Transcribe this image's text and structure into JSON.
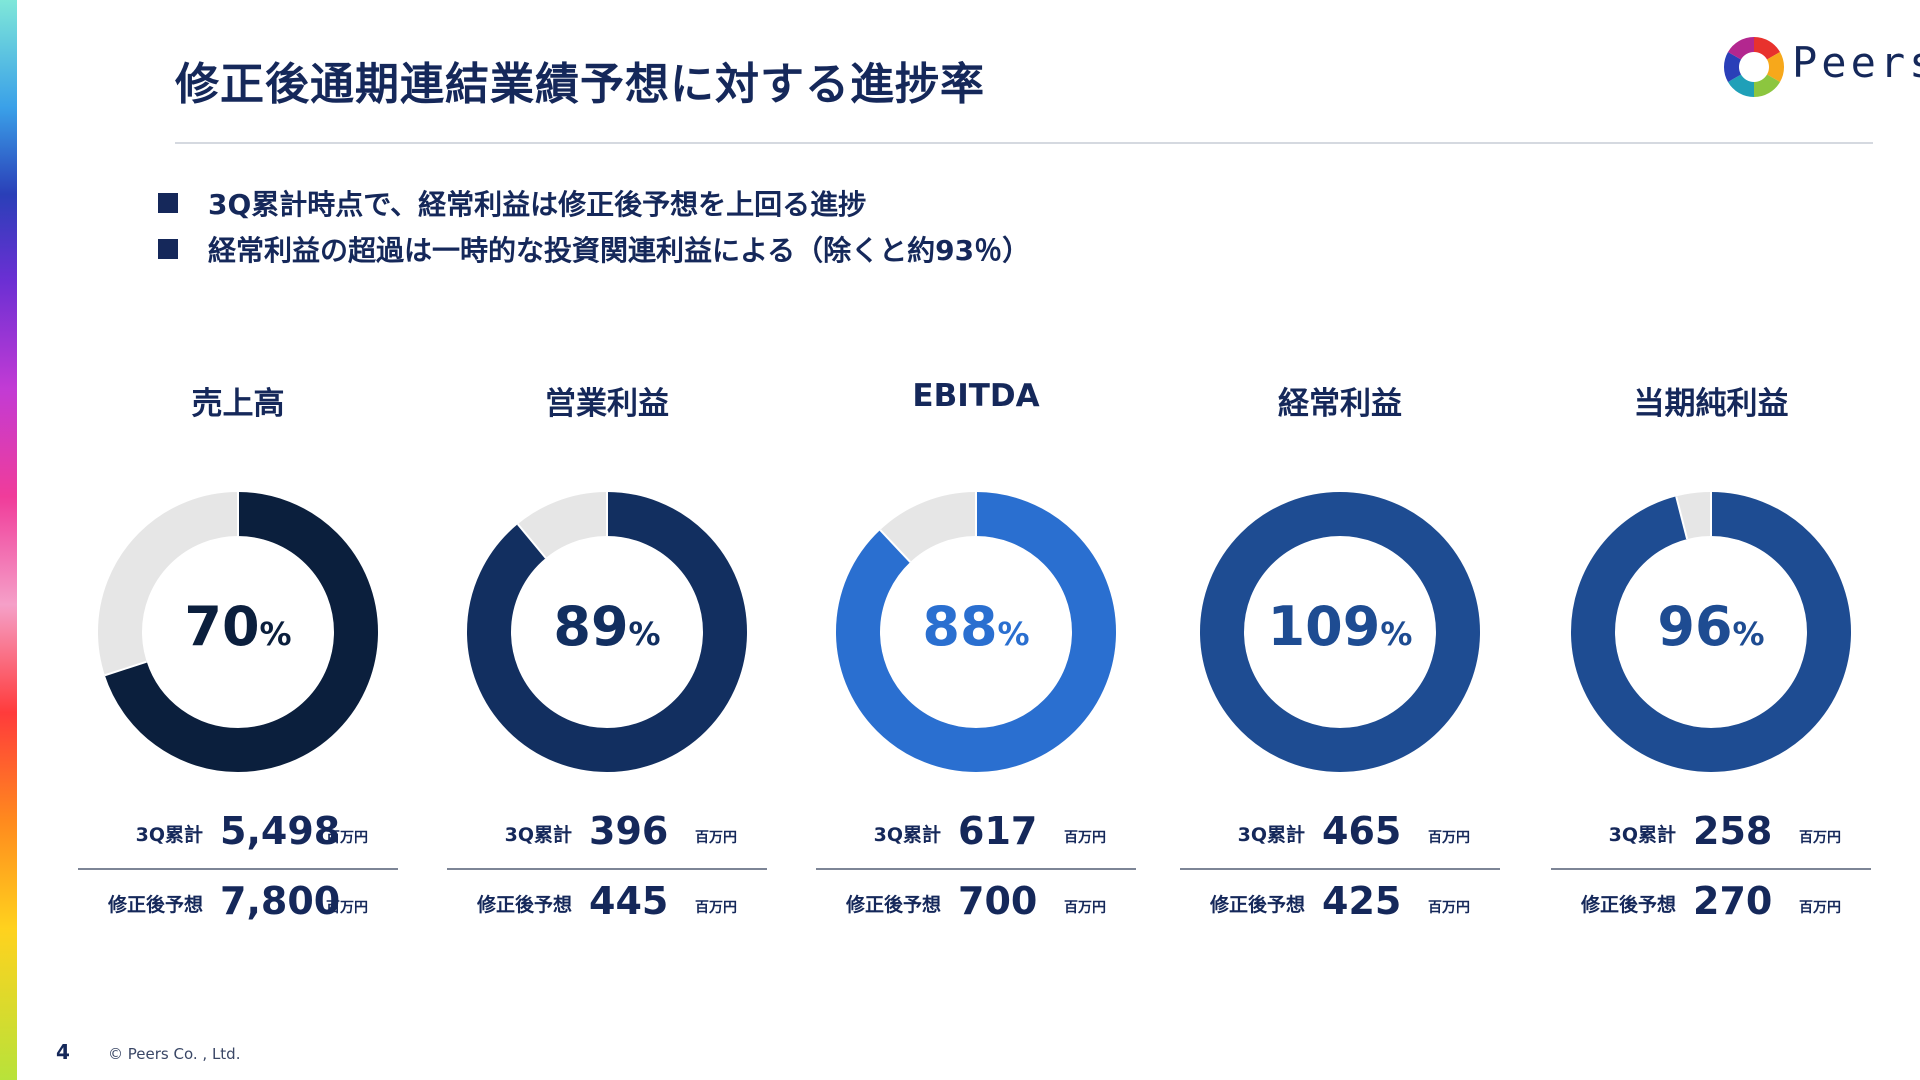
{
  "page": {
    "title": "修正後通期連結業績予想に対する進捗率",
    "logo_text": "Peers",
    "bullets": [
      "3Q累計時点で、経常利益は修正後予想を上回る進捗",
      "経常利益の超過は一時的な投資関連利益による（除くと約93％）"
    ],
    "page_number": "4",
    "copyright": "© Peers Co. , Ltd."
  },
  "colors": {
    "track": "#e6e6e6",
    "title_text": "#15285a"
  },
  "chart_data": [
    {
      "type": "pie",
      "title": "売上高",
      "percent": 70,
      "percent_label": "70",
      "percent_unit": "%",
      "color": "#0b1f3d",
      "accum_label": "3Q累計",
      "accum_value": "5,498",
      "forecast_label": "修正後予想",
      "forecast_value": "7,800",
      "unit": "百万円"
    },
    {
      "type": "pie",
      "title": "営業利益",
      "percent": 89,
      "percent_label": "89",
      "percent_unit": "%",
      "color": "#122f60",
      "accum_label": "3Q累計",
      "accum_value": "396",
      "forecast_label": "修正後予想",
      "forecast_value": "445",
      "unit": "百万円"
    },
    {
      "type": "pie",
      "title": "EBITDA",
      "percent": 88,
      "percent_label": "88",
      "percent_unit": "%",
      "color": "#2a6fd0",
      "accum_label": "3Q累計",
      "accum_value": "617",
      "forecast_label": "修正後予想",
      "forecast_value": "700",
      "unit": "百万円"
    },
    {
      "type": "pie",
      "title": "経常利益",
      "percent": 109,
      "percent_label": "109",
      "percent_unit": "%",
      "color": "#1e4c92",
      "accum_label": "3Q累計",
      "accum_value": "465",
      "forecast_label": "修正後予想",
      "forecast_value": "425",
      "unit": "百万円"
    },
    {
      "type": "pie",
      "title": "当期純利益",
      "percent": 96,
      "percent_label": "96",
      "percent_unit": "%",
      "color": "#1e4c92",
      "accum_label": "3Q累計",
      "accum_value": "258",
      "forecast_label": "修正後予想",
      "forecast_value": "270",
      "unit": "百万円"
    }
  ]
}
